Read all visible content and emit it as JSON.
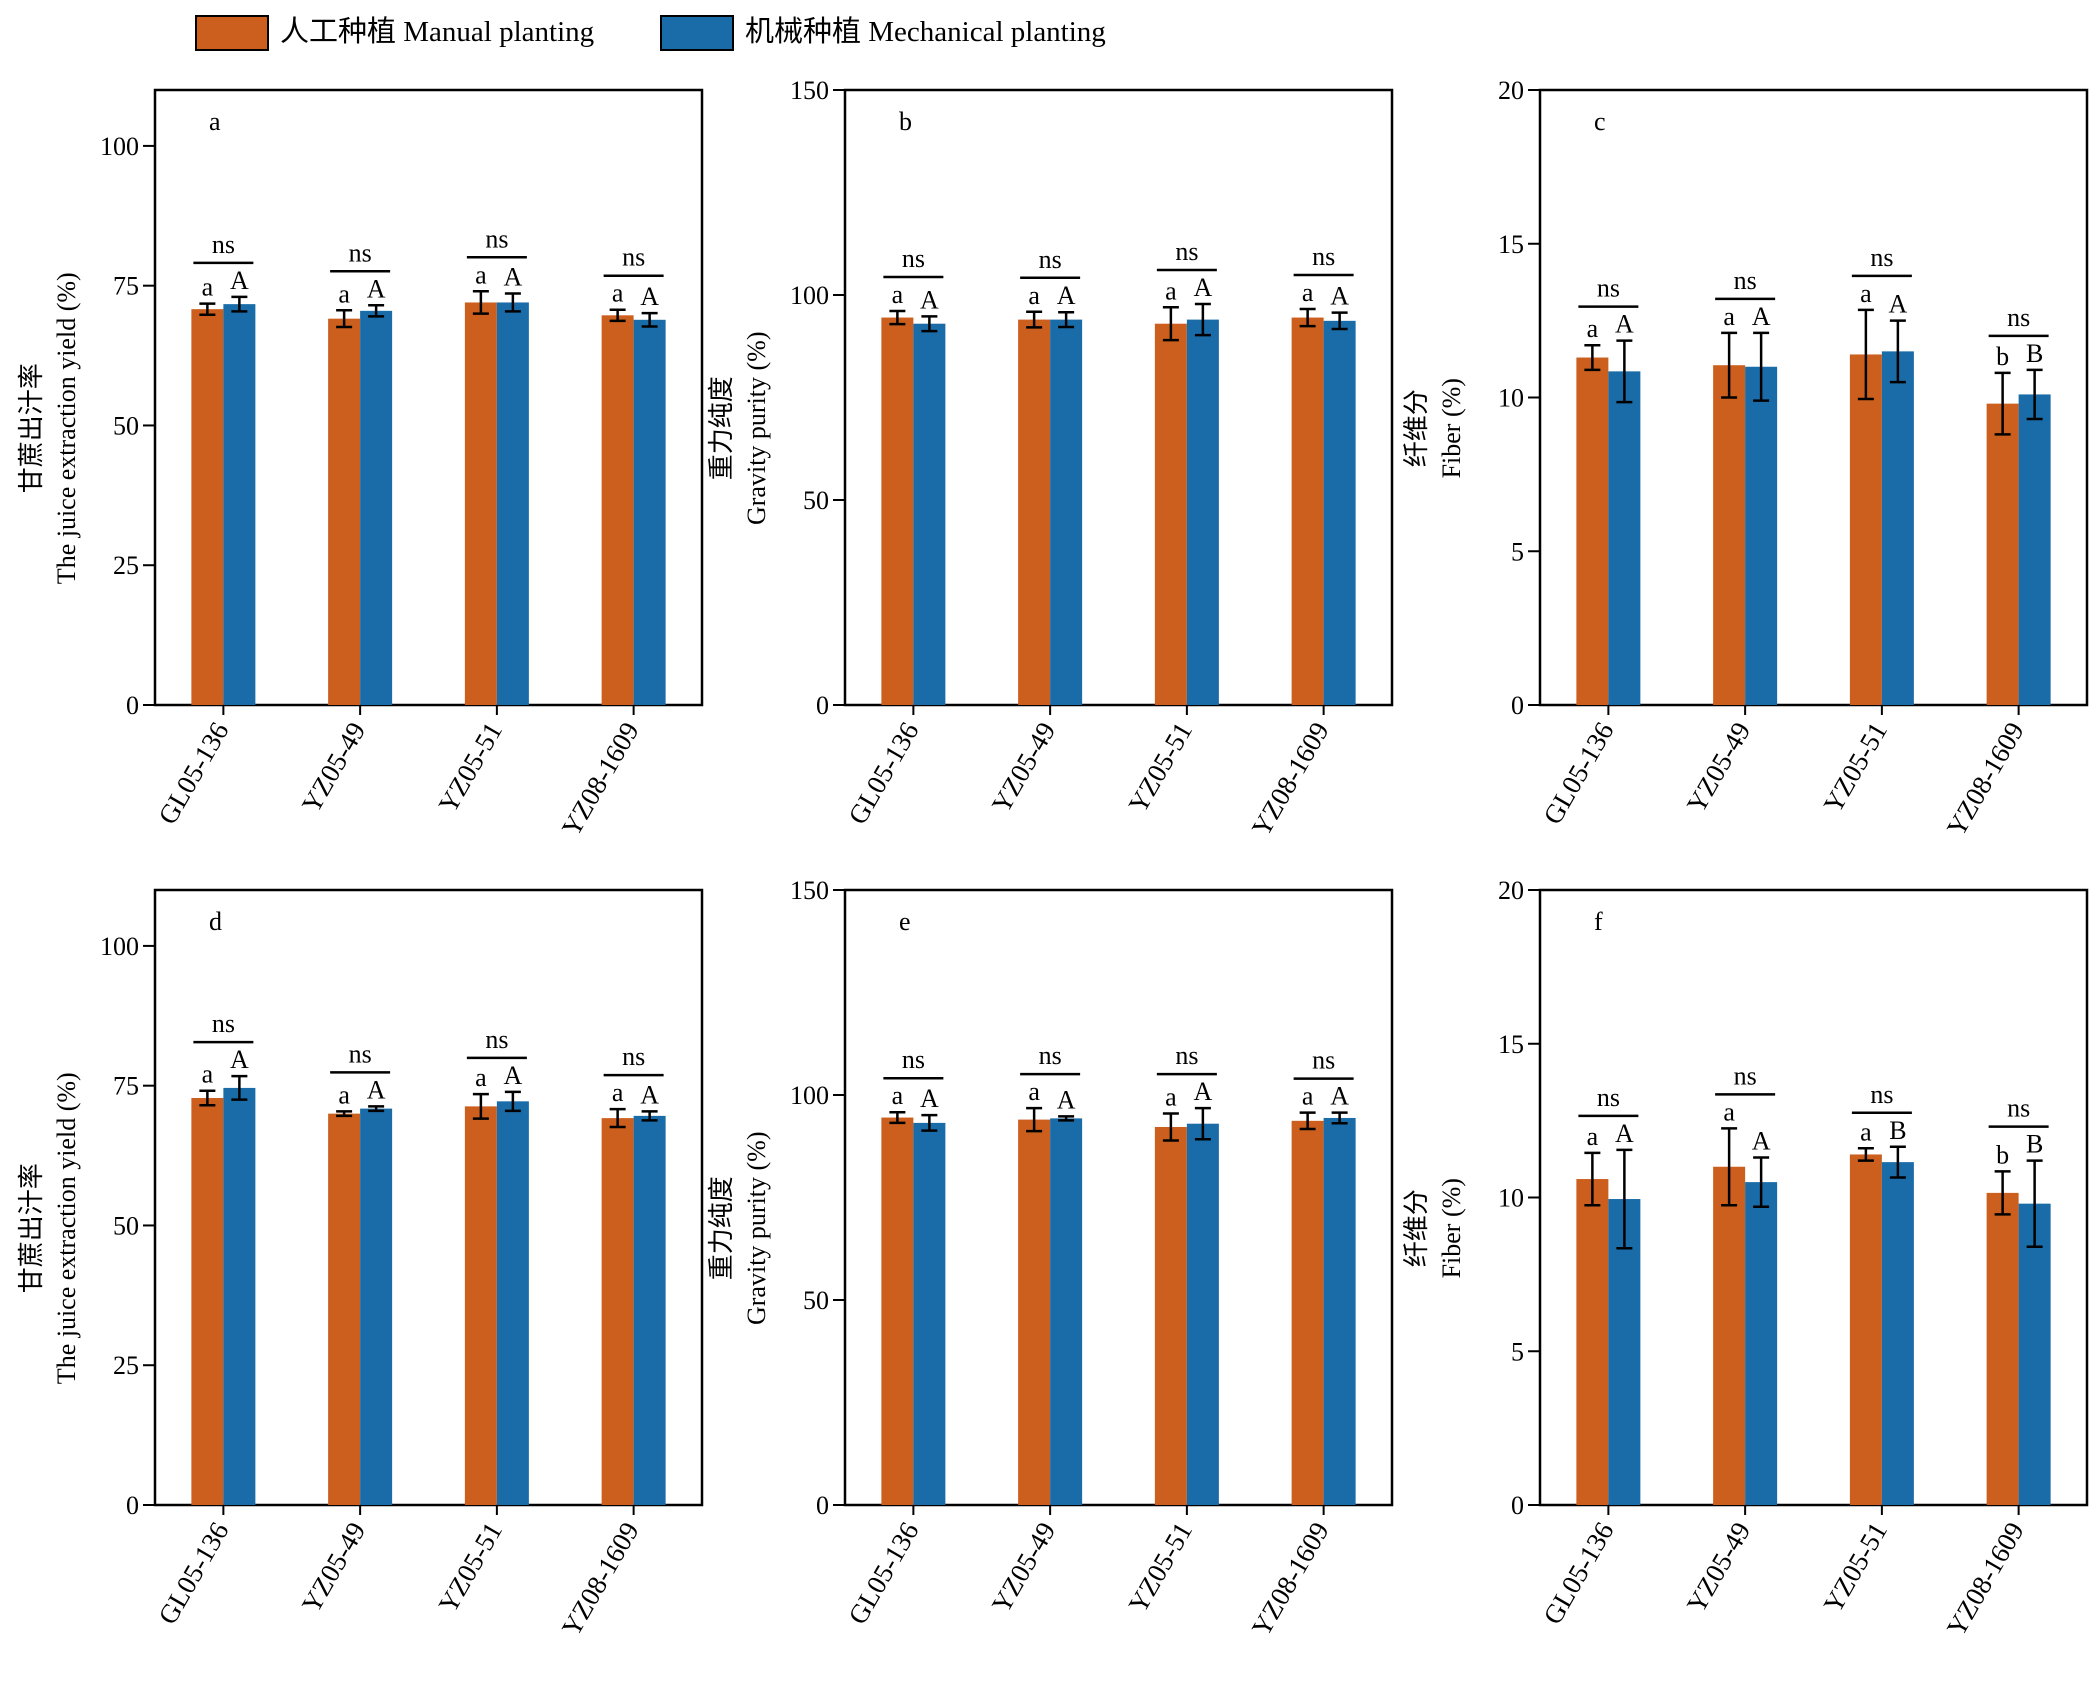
{
  "colors": {
    "manual": "#CC5F1E",
    "mechanical": "#1A6CA8"
  },
  "legend": {
    "manual_label": "人工种植 Manual planting",
    "mechanical_label": "机械种植 Mechanical planting"
  },
  "chart_data": [
    {
      "panel": "a",
      "type": "bar",
      "categories": [
        "GL05-136",
        "YZ05-49",
        "YZ05-51",
        "YZ08-1609"
      ],
      "ylabel_cn": "甘蔗出汁率",
      "ylabel_en": "The juice extraction yield (%)",
      "ylim": [
        0,
        110
      ],
      "yticks": [
        0,
        25,
        50,
        75,
        100
      ],
      "series": [
        {
          "name": "人工种植 Manual planting",
          "values": [
            70.8,
            69.1,
            72.0,
            69.7
          ],
          "errors": [
            1.0,
            1.5,
            2.0,
            1.0
          ],
          "letters": [
            "a",
            "a",
            "a",
            "a"
          ]
        },
        {
          "name": "机械种植 Mechanical planting",
          "values": [
            71.7,
            70.5,
            72.0,
            68.9
          ],
          "errors": [
            1.3,
            1.0,
            1.6,
            1.2
          ],
          "letters": [
            "A",
            "A",
            "A",
            "A"
          ]
        }
      ],
      "significance": [
        "ns",
        "ns",
        "ns",
        "ns"
      ]
    },
    {
      "panel": "b",
      "type": "bar",
      "categories": [
        "GL05-136",
        "YZ05-49",
        "YZ05-51",
        "YZ08-1609"
      ],
      "ylabel_cn": "重力纯度",
      "ylabel_en": "Gravity purity (%)",
      "ylim": [
        0,
        150
      ],
      "yticks": [
        0,
        50,
        100,
        150
      ],
      "series": [
        {
          "name": "人工种植 Manual planting",
          "values": [
            94.5,
            94.0,
            93.0,
            94.5
          ],
          "errors": [
            1.6,
            1.9,
            4.0,
            2.1
          ],
          "letters": [
            "a",
            "a",
            "a",
            "a"
          ]
        },
        {
          "name": "机械种植 Mechanical planting",
          "values": [
            93.0,
            94.0,
            94.0,
            93.7
          ],
          "errors": [
            1.8,
            1.8,
            3.8,
            2.0
          ],
          "letters": [
            "A",
            "A",
            "A",
            "A"
          ]
        }
      ],
      "significance": [
        "ns",
        "ns",
        "ns",
        "ns"
      ]
    },
    {
      "panel": "c",
      "type": "bar",
      "categories": [
        "GL05-136",
        "YZ05-49",
        "YZ05-51",
        "YZ08-1609"
      ],
      "ylabel_cn": "纤维分",
      "ylabel_en": "Fiber (%)",
      "ylim": [
        0,
        20
      ],
      "yticks": [
        0,
        5,
        10,
        15,
        20
      ],
      "series": [
        {
          "name": "人工种植 Manual planting",
          "values": [
            11.3,
            11.05,
            11.4,
            9.8
          ],
          "errors": [
            0.4,
            1.05,
            1.45,
            1.0
          ],
          "letters": [
            "a",
            "a",
            "a",
            "b"
          ]
        },
        {
          "name": "机械种植 Mechanical planting",
          "values": [
            10.85,
            11.0,
            11.5,
            10.1
          ],
          "errors": [
            1.0,
            1.1,
            1.0,
            0.8
          ],
          "letters": [
            "A",
            "A",
            "A",
            "B"
          ]
        }
      ],
      "significance": [
        "ns",
        "ns",
        "ns",
        "ns"
      ]
    },
    {
      "panel": "d",
      "type": "bar",
      "categories": [
        "GL05-136",
        "YZ05-49",
        "YZ05-51",
        "YZ08-1609"
      ],
      "ylabel_cn": "甘蔗出汁率",
      "ylabel_en": "The juice extraction yield (%)",
      "ylim": [
        0,
        110
      ],
      "yticks": [
        0,
        25,
        50,
        75,
        100
      ],
      "series": [
        {
          "name": "人工种植 Manual planting",
          "values": [
            72.8,
            70.0,
            71.3,
            69.2
          ],
          "errors": [
            1.3,
            0.4,
            2.2,
            1.6
          ],
          "letters": [
            "a",
            "a",
            "a",
            "a"
          ]
        },
        {
          "name": "机械种植 Mechanical planting",
          "values": [
            74.6,
            70.9,
            72.2,
            69.6
          ],
          "errors": [
            2.1,
            0.4,
            1.7,
            0.8
          ],
          "letters": [
            "A",
            "A",
            "A",
            "A"
          ]
        }
      ],
      "significance": [
        "ns",
        "ns",
        "ns",
        "ns"
      ]
    },
    {
      "panel": "e",
      "type": "bar",
      "categories": [
        "GL05-136",
        "YZ05-49",
        "YZ05-51",
        "YZ08-1609"
      ],
      "ylabel_cn": "重力纯度",
      "ylabel_en": "Gravity purity (%)",
      "ylim": [
        0,
        150
      ],
      "yticks": [
        0,
        50,
        100,
        150
      ],
      "series": [
        {
          "name": "人工种植 Manual planting",
          "values": [
            94.5,
            94.0,
            92.2,
            93.7
          ],
          "errors": [
            1.3,
            2.8,
            3.3,
            2.0
          ],
          "letters": [
            "a",
            "a",
            "a",
            "a"
          ]
        },
        {
          "name": "机械种植 Mechanical planting",
          "values": [
            93.2,
            94.3,
            93.0,
            94.4
          ],
          "errors": [
            1.9,
            0.5,
            3.8,
            1.3
          ],
          "letters": [
            "A",
            "A",
            "A",
            "A"
          ]
        }
      ],
      "significance": [
        "ns",
        "ns",
        "ns",
        "ns"
      ]
    },
    {
      "panel": "f",
      "type": "bar",
      "categories": [
        "GL05-136",
        "YZ05-49",
        "YZ05-51",
        "YZ08-1609"
      ],
      "ylabel_cn": "纤维分",
      "ylabel_en": "Fiber (%)",
      "ylim": [
        0,
        20
      ],
      "yticks": [
        0,
        5,
        10,
        15,
        20
      ],
      "series": [
        {
          "name": "人工种植 Manual planting",
          "values": [
            10.6,
            11.0,
            11.4,
            10.15
          ],
          "errors": [
            0.85,
            1.25,
            0.2,
            0.7
          ],
          "letters": [
            "a",
            "a",
            "a",
            "b"
          ]
        },
        {
          "name": "机械种植 Mechanical planting",
          "values": [
            9.95,
            10.5,
            11.15,
            9.8
          ],
          "errors": [
            1.6,
            0.8,
            0.5,
            1.4
          ],
          "letters": [
            "A",
            "A",
            "B",
            "B"
          ]
        }
      ],
      "significance": [
        "ns",
        "ns",
        "ns",
        "ns"
      ]
    }
  ]
}
